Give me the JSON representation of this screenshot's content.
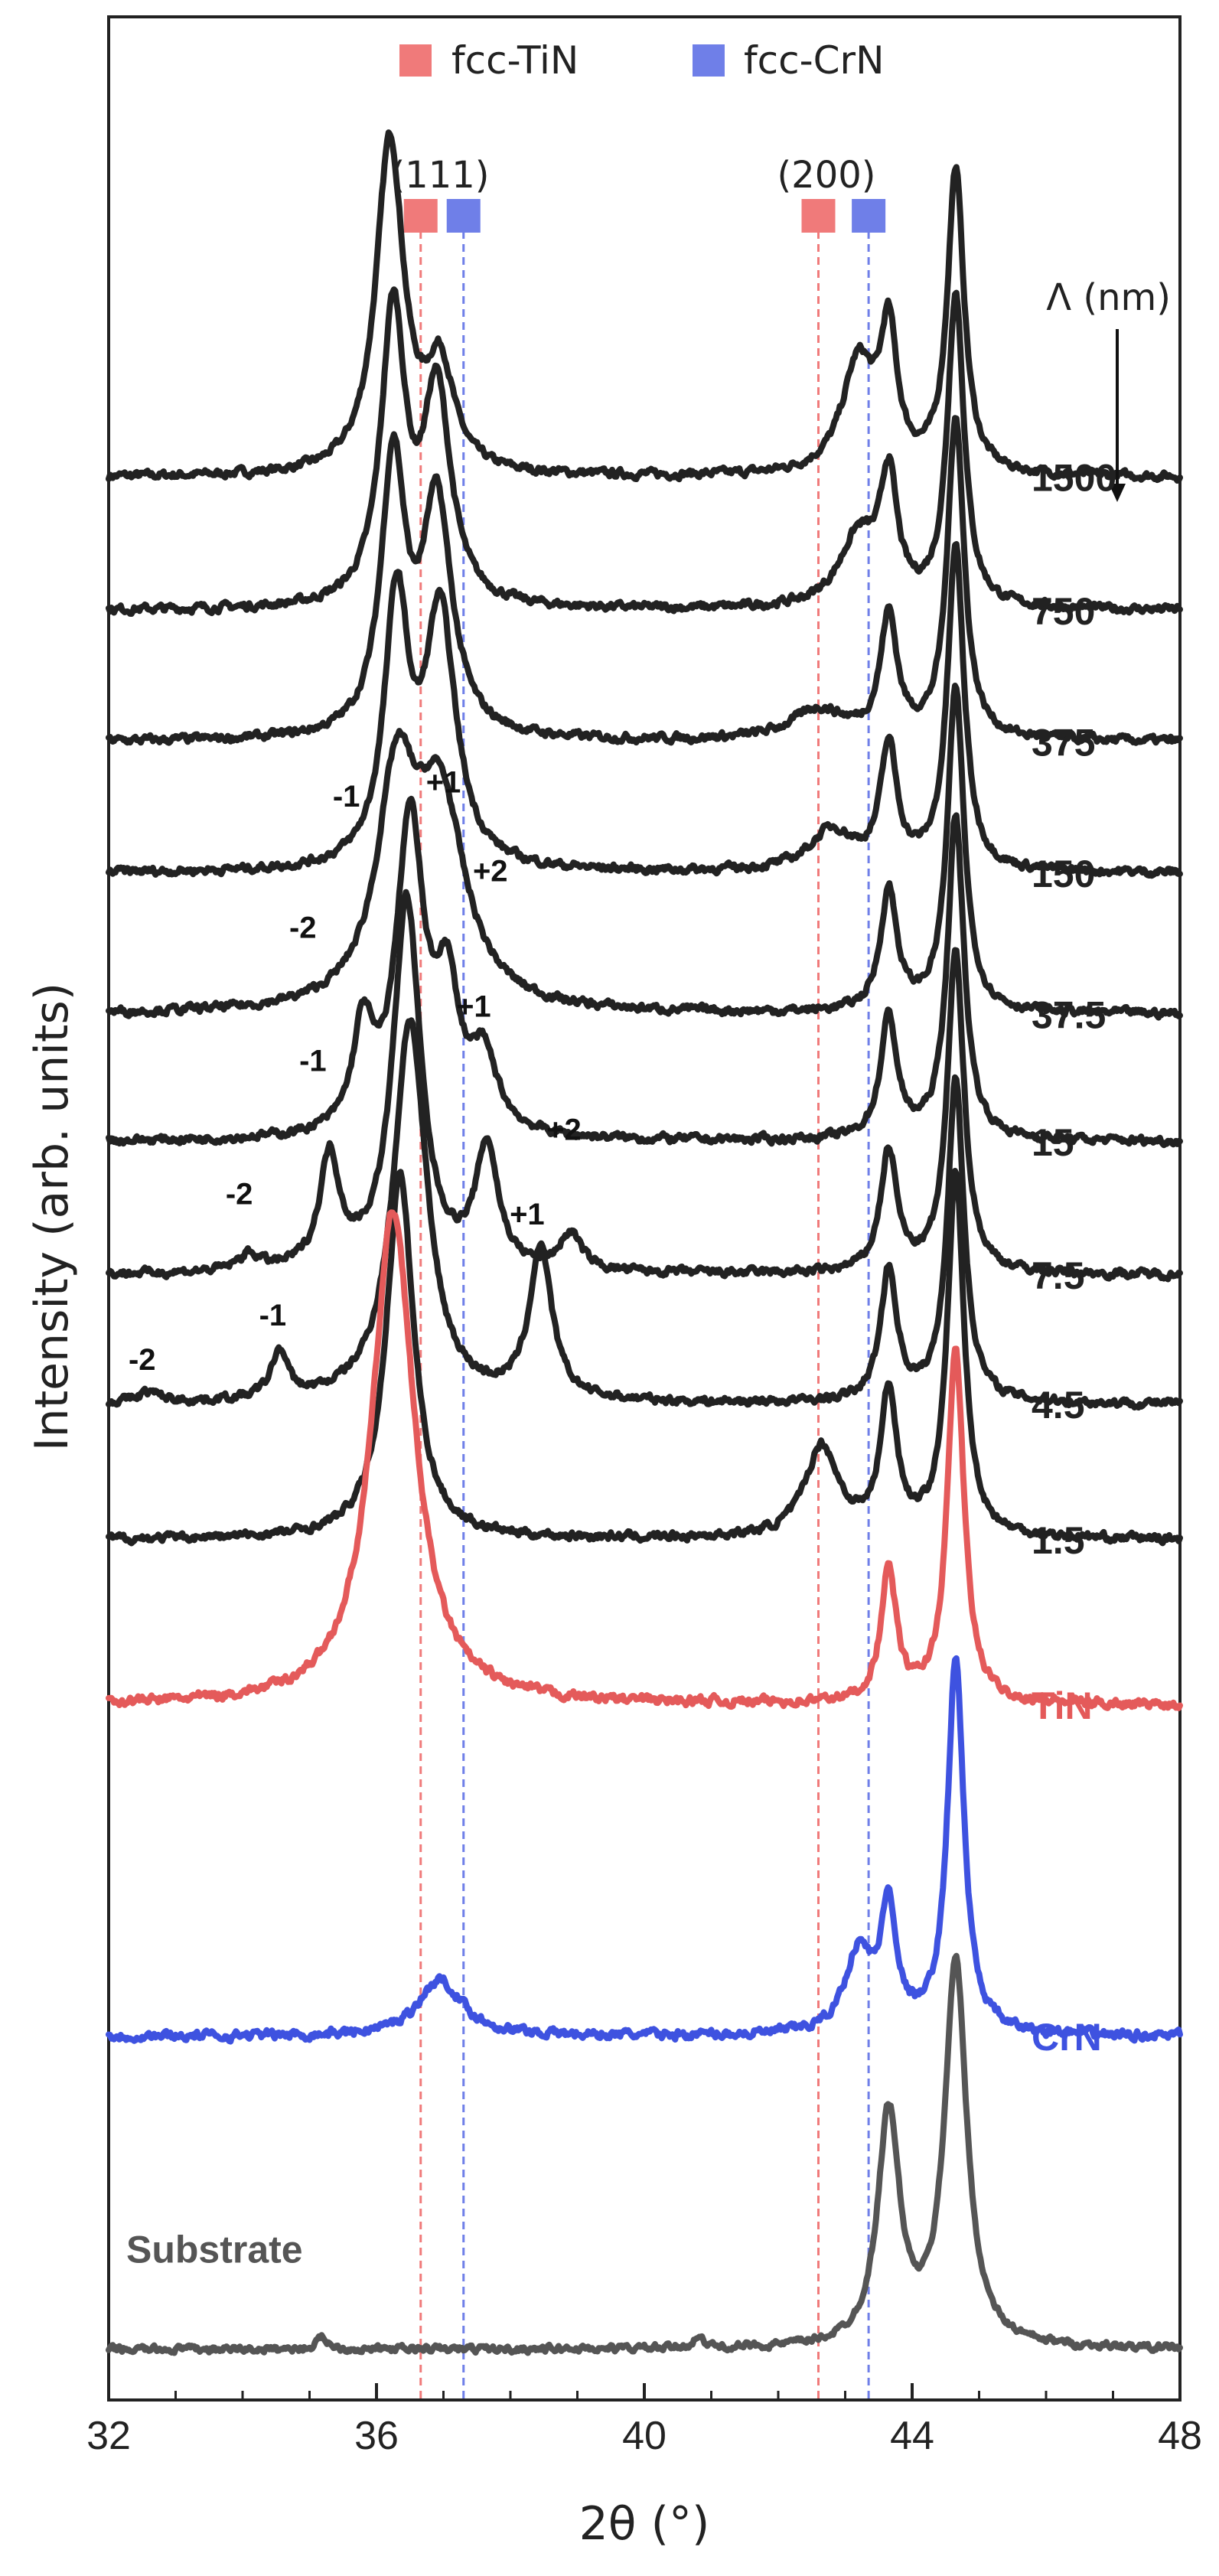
{
  "chart_data": {
    "type": "line",
    "xlabel": "2θ (°)",
    "ylabel": "Intensity (arb. units)",
    "xlim": [
      32,
      48
    ],
    "xticks": [
      32,
      36,
      40,
      44,
      48
    ],
    "grid": false,
    "legend_position": "top-center",
    "legend": [
      {
        "name": "fcc-TiN",
        "color": "#f07a7a"
      },
      {
        "name": "fcc-CrN",
        "color": "#6f7fe8"
      }
    ],
    "reference_groups": [
      {
        "label": "(111)",
        "tin_pos": 36.66,
        "crn_pos": 37.3
      },
      {
        "label": "(200)",
        "tin_pos": 42.6,
        "crn_pos": 43.35
      }
    ],
    "period_axis_label": "Λ (nm)",
    "series": [
      {
        "name": "1500",
        "color": "#222222",
        "baseline": 95.2,
        "noise": 0.35,
        "peaks": [
          [
            36.2,
            16.5,
            0.25
          ],
          [
            36.95,
            5.0,
            0.25
          ],
          [
            43.2,
            5.5,
            0.3
          ],
          [
            43.65,
            6.5,
            0.15
          ],
          [
            44.65,
            15.0,
            0.15
          ]
        ]
      },
      {
        "name": "750",
        "color": "#222222",
        "baseline": 88.6,
        "noise": 0.35,
        "peaks": [
          [
            36.25,
            14.5,
            0.22
          ],
          [
            36.9,
            10.5,
            0.25
          ],
          [
            43.2,
            3.5,
            0.35
          ],
          [
            43.65,
            6.0,
            0.15
          ],
          [
            44.65,
            15.5,
            0.15
          ]
        ]
      },
      {
        "name": "375",
        "color": "#222222",
        "baseline": 82.1,
        "noise": 0.35,
        "peaks": [
          [
            36.25,
            13.5,
            0.22
          ],
          [
            36.9,
            11.5,
            0.27
          ],
          [
            42.6,
            1.5,
            0.5
          ],
          [
            43.65,
            6.0,
            0.15
          ],
          [
            44.65,
            16.0,
            0.15
          ]
        ]
      },
      {
        "name": "150",
        "color": "#222222",
        "baseline": 75.6,
        "noise": 0.35,
        "peaks": [
          [
            36.3,
            13.0,
            0.22
          ],
          [
            36.95,
            12.5,
            0.28
          ],
          [
            42.8,
            2.0,
            0.4
          ],
          [
            43.65,
            6.0,
            0.15
          ],
          [
            44.65,
            16.0,
            0.15
          ]
        ]
      },
      {
        "name": "37.5",
        "color": "#222222",
        "baseline": 68.6,
        "noise": 0.35,
        "peaks": [
          [
            36.3,
            10.5,
            0.35
          ],
          [
            36.95,
            10.0,
            0.45
          ],
          [
            43.65,
            6.0,
            0.15
          ],
          [
            44.65,
            16.0,
            0.15
          ]
        ]
      },
      {
        "name": "15",
        "color": "#222222",
        "baseline": 62.3,
        "noise": 0.35,
        "peaks": [
          [
            35.8,
            5.0,
            0.18
          ],
          [
            36.5,
            15.5,
            0.25
          ],
          [
            37.05,
            6.5,
            0.22
          ],
          [
            37.6,
            3.5,
            0.25
          ],
          [
            43.65,
            6.0,
            0.15
          ],
          [
            44.65,
            16.0,
            0.15
          ]
        ]
      },
      {
        "name": "7.5",
        "color": "#222222",
        "baseline": 55.7,
        "noise": 0.35,
        "peaks": [
          [
            34.1,
            0.8,
            0.2
          ],
          [
            35.3,
            5.5,
            0.18
          ],
          [
            36.45,
            18.5,
            0.25
          ],
          [
            37.65,
            6.0,
            0.2
          ],
          [
            38.9,
            1.8,
            0.2
          ],
          [
            43.65,
            6.0,
            0.15
          ],
          [
            44.65,
            16.0,
            0.15
          ]
        ]
      },
      {
        "name": "4.5",
        "color": "#222222",
        "baseline": 49.3,
        "noise": 0.35,
        "peaks": [
          [
            32.6,
            0.5,
            0.2
          ],
          [
            34.55,
            2.3,
            0.15
          ],
          [
            36.5,
            19.0,
            0.3
          ],
          [
            38.45,
            7.5,
            0.2
          ],
          [
            43.65,
            6.5,
            0.15
          ],
          [
            44.65,
            16.0,
            0.15
          ]
        ]
      },
      {
        "name": "1.5",
        "color": "#222222",
        "baseline": 42.6,
        "noise": 0.35,
        "peaks": [
          [
            36.35,
            18.0,
            0.25
          ],
          [
            42.65,
            4.5,
            0.3
          ],
          [
            43.65,
            7.0,
            0.15
          ],
          [
            44.65,
            18.0,
            0.15
          ]
        ]
      },
      {
        "name": "TiN",
        "color": "#e45a5a",
        "baseline": 34.4,
        "noise": 0.4,
        "peaks": [
          [
            36.25,
            24.5,
            0.38
          ],
          [
            43.65,
            6.5,
            0.14
          ],
          [
            44.65,
            17.5,
            0.15
          ]
        ]
      },
      {
        "name": "CrN",
        "color": "#3e52e0",
        "baseline": 18.0,
        "noise": 0.4,
        "peaks": [
          [
            36.95,
            2.8,
            0.4
          ],
          [
            43.2,
            4.0,
            0.25
          ],
          [
            43.65,
            6.0,
            0.14
          ],
          [
            44.65,
            18.5,
            0.15
          ]
        ]
      },
      {
        "name": "Substrate",
        "color": "#555555",
        "baseline": 2.5,
        "noise": 0.3,
        "peaks": [
          [
            35.2,
            0.6,
            0.1
          ],
          [
            40.8,
            0.6,
            0.08
          ],
          [
            43.65,
            11.5,
            0.2
          ],
          [
            44.65,
            19.0,
            0.2
          ]
        ]
      }
    ],
    "annotations": [
      {
        "text": "+1",
        "x": 37.0,
        "y": 79.6
      },
      {
        "text": "-1",
        "x": 35.55,
        "y": 78.9
      },
      {
        "text": "+2",
        "x": 37.7,
        "y": 75.2
      },
      {
        "text": "-2",
        "x": 34.9,
        "y": 72.4
      },
      {
        "text": "+1",
        "x": 37.45,
        "y": 68.5
      },
      {
        "text": "-1",
        "x": 35.05,
        "y": 65.8
      },
      {
        "text": "+2",
        "x": 38.8,
        "y": 62.4
      },
      {
        "text": "-2",
        "x": 33.95,
        "y": 59.2
      },
      {
        "text": "+1",
        "x": 38.25,
        "y": 58.2
      },
      {
        "text": "-1",
        "x": 34.45,
        "y": 53.2
      },
      {
        "text": "-2",
        "x": 32.5,
        "y": 51.0
      }
    ]
  }
}
